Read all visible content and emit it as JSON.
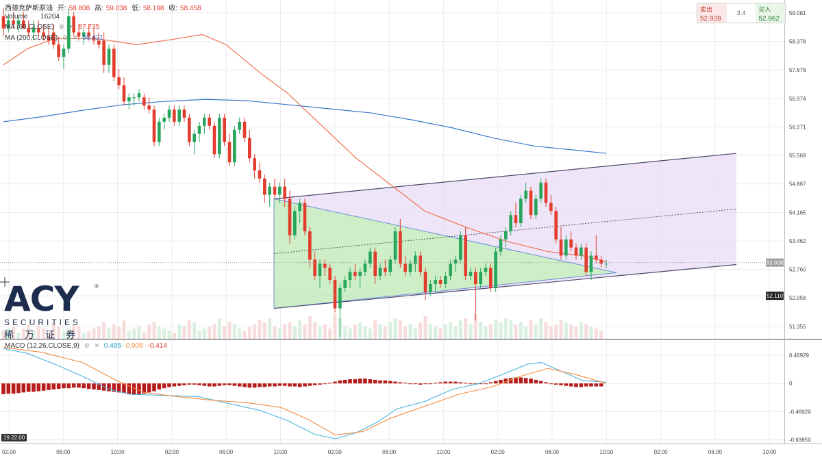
{
  "legend": {
    "symbol": "西德克萨斯原油",
    "open_label": "开:",
    "open": "58.808",
    "high_label": "高:",
    "high": "59.038",
    "low_label": "低:",
    "low": "58.198",
    "close_label": "收:",
    "close": "58.458",
    "volume_label": "Volume",
    "volume": "16204",
    "ma60_label": "MA (60,CLOSE)",
    "ma60_value": "57.735",
    "ma200_label": "MA (200,CLOSE)",
    "ma200_value": "56.421",
    "macd_label": "MACD (12,26,CLOSE,9)",
    "macd_value": "0.495",
    "signal_value": "0.908",
    "hist_value": "-0.414",
    "settings_icon": "gear-icon",
    "close_icon": "close-icon"
  },
  "trade_box": {
    "sell_label": "卖出",
    "sell_price": "52.928",
    "spread": "3.4",
    "buy_label": "买入",
    "buy_price": "52.962"
  },
  "logo": {
    "brand": "ACY",
    "securities": "SECURITIES",
    "chinese": "稀万证券",
    "reg": "®"
  },
  "time_tag": "19 22:00",
  "colors": {
    "up": "#26a65b",
    "down": "#e23c2c",
    "ma60": "#f07050",
    "ma200": "#3a78c9",
    "macd_line": "#4ab3e0",
    "signal_line": "#f28a3d",
    "macd_hist": "#b71c1c",
    "triangle_fill": "#c8f0c0",
    "channel_fill": "#eadcf7"
  },
  "chart_data": {
    "type": "candlestick",
    "price_axis": {
      "ticks": [
        "59.081",
        "58.378",
        "57.676",
        "56.974",
        "56.271",
        "55.569",
        "54.867",
        "54.165",
        "53.462",
        "52.760",
        "52.058",
        "51.355"
      ],
      "ylim": [
        51.05,
        59.4
      ],
      "current_price": "52.928",
      "marked_price": "52.110"
    },
    "macd_axis": {
      "ticks": [
        "0.46929",
        "0",
        "-0.46929",
        "-0.93859"
      ],
      "ylim": [
        -1.0,
        0.72
      ]
    },
    "time_axis": {
      "ticks": [
        "02:00",
        "06:00",
        "10:00",
        "02:00",
        "06:00",
        "10:00",
        "02:00",
        "06:00",
        "10:00",
        "02:00",
        "06:00",
        "10:00",
        "02:00",
        "06:00",
        "10:00"
      ]
    },
    "candles": [
      [
        59.0,
        59.2,
        58.5,
        58.7
      ],
      [
        58.7,
        59.0,
        58.6,
        58.9
      ],
      [
        58.9,
        59.1,
        58.7,
        58.8
      ],
      [
        58.8,
        59.0,
        58.6,
        58.9
      ],
      [
        58.9,
        59.1,
        58.7,
        58.7
      ],
      [
        58.7,
        58.9,
        58.5,
        58.6
      ],
      [
        58.6,
        58.9,
        58.4,
        58.7
      ],
      [
        58.7,
        58.9,
        58.5,
        58.6
      ],
      [
        58.6,
        58.8,
        58.4,
        58.5
      ],
      [
        58.5,
        58.7,
        58.3,
        58.4
      ],
      [
        58.6,
        58.8,
        58.2,
        58.3
      ],
      [
        58.3,
        58.5,
        57.9,
        58.0
      ],
      [
        58.0,
        58.3,
        57.7,
        58.2
      ],
      [
        58.2,
        59.2,
        58.1,
        59.0
      ],
      [
        59.0,
        59.1,
        58.5,
        58.6
      ],
      [
        58.6,
        58.8,
        58.4,
        58.5
      ],
      [
        58.5,
        58.7,
        58.3,
        58.6
      ],
      [
        58.6,
        58.8,
        58.4,
        58.5
      ],
      [
        58.5,
        58.7,
        58.3,
        58.4
      ],
      [
        58.4,
        58.6,
        58.2,
        58.3
      ],
      [
        58.4,
        58.6,
        57.6,
        57.8
      ],
      [
        57.8,
        58.3,
        57.6,
        58.2
      ],
      [
        58.2,
        58.3,
        57.4,
        57.5
      ],
      [
        57.5,
        57.7,
        57.2,
        57.3
      ],
      [
        57.3,
        57.5,
        56.8,
        56.9
      ],
      [
        56.9,
        57.1,
        56.7,
        57.0
      ],
      [
        57.0,
        57.1,
        56.8,
        57.0
      ],
      [
        57.0,
        57.2,
        56.9,
        57.1
      ],
      [
        57.0,
        57.1,
        56.7,
        56.8
      ],
      [
        56.8,
        57.0,
        56.6,
        56.7
      ],
      [
        56.7,
        56.8,
        55.8,
        55.9
      ],
      [
        55.9,
        56.5,
        55.8,
        56.4
      ],
      [
        56.4,
        56.6,
        56.2,
        56.5
      ],
      [
        56.5,
        56.8,
        56.4,
        56.7
      ],
      [
        56.7,
        56.8,
        56.3,
        56.4
      ],
      [
        56.4,
        56.8,
        56.3,
        56.7
      ],
      [
        56.7,
        56.8,
        56.4,
        56.5
      ],
      [
        56.5,
        56.6,
        55.8,
        55.9
      ],
      [
        55.9,
        56.2,
        55.6,
        56.1
      ],
      [
        56.1,
        56.4,
        55.9,
        56.3
      ],
      [
        56.3,
        56.6,
        56.1,
        56.5
      ],
      [
        56.5,
        56.6,
        56.2,
        56.3
      ],
      [
        56.3,
        56.4,
        55.5,
        55.6
      ],
      [
        55.6,
        56.6,
        55.5,
        56.5
      ],
      [
        56.5,
        56.6,
        55.8,
        55.9
      ],
      [
        55.9,
        56.1,
        55.3,
        55.4
      ],
      [
        55.4,
        56.3,
        55.3,
        56.2
      ],
      [
        56.2,
        56.5,
        56.1,
        56.4
      ],
      [
        56.4,
        56.5,
        55.9,
        56.0
      ],
      [
        56.0,
        56.2,
        55.4,
        55.5
      ],
      [
        55.5,
        55.6,
        55.0,
        55.2
      ],
      [
        55.2,
        55.4,
        54.9,
        55.0
      ],
      [
        55.0,
        55.1,
        54.4,
        54.6
      ],
      [
        54.6,
        54.9,
        54.3,
        54.8
      ],
      [
        54.8,
        55.0,
        54.5,
        54.6
      ],
      [
        54.6,
        54.9,
        54.4,
        54.8
      ],
      [
        54.8,
        55.0,
        54.3,
        54.5
      ],
      [
        54.5,
        54.7,
        53.4,
        53.6
      ],
      [
        53.6,
        54.3,
        53.5,
        54.2
      ],
      [
        54.2,
        54.5,
        53.9,
        54.4
      ],
      [
        54.4,
        54.5,
        53.6,
        53.7
      ],
      [
        53.7,
        53.8,
        52.8,
        53.0
      ],
      [
        53.0,
        53.2,
        52.5,
        52.6
      ],
      [
        52.6,
        53.0,
        52.3,
        52.9
      ],
      [
        52.9,
        53.0,
        52.6,
        52.8
      ],
      [
        52.8,
        52.9,
        52.4,
        52.5
      ],
      [
        52.5,
        52.6,
        51.7,
        51.8
      ],
      [
        51.8,
        52.4,
        51.1,
        52.3
      ],
      [
        52.3,
        52.6,
        52.2,
        52.5
      ],
      [
        52.5,
        52.8,
        52.3,
        52.7
      ],
      [
        52.7,
        52.9,
        52.5,
        52.6
      ],
      [
        52.6,
        52.8,
        52.3,
        52.7
      ],
      [
        52.7,
        53.0,
        52.6,
        52.9
      ],
      [
        52.9,
        53.3,
        52.8,
        53.2
      ],
      [
        53.2,
        53.3,
        52.4,
        52.6
      ],
      [
        52.6,
        52.9,
        52.5,
        52.8
      ],
      [
        52.8,
        53.0,
        52.6,
        52.7
      ],
      [
        52.7,
        53.1,
        52.6,
        53.0
      ],
      [
        53.0,
        53.8,
        52.9,
        53.7
      ],
      [
        53.7,
        54.0,
        52.8,
        52.9
      ],
      [
        52.9,
        53.1,
        52.6,
        52.7
      ],
      [
        52.7,
        53.0,
        52.6,
        52.9
      ],
      [
        52.9,
        53.2,
        52.7,
        53.1
      ],
      [
        53.1,
        53.2,
        52.6,
        52.7
      ],
      [
        52.7,
        52.8,
        52.0,
        52.2
      ],
      [
        52.2,
        52.5,
        52.1,
        52.4
      ],
      [
        52.4,
        52.6,
        52.2,
        52.5
      ],
      [
        52.5,
        52.6,
        52.3,
        52.4
      ],
      [
        52.4,
        52.7,
        52.3,
        52.6
      ],
      [
        52.6,
        53.0,
        52.5,
        52.9
      ],
      [
        52.9,
        53.1,
        52.7,
        53.0
      ],
      [
        53.0,
        53.7,
        52.9,
        53.6
      ],
      [
        53.6,
        53.8,
        52.5,
        52.6
      ],
      [
        52.6,
        52.8,
        52.5,
        52.7
      ],
      [
        52.7,
        52.8,
        51.5,
        52.4
      ],
      [
        52.4,
        52.8,
        52.3,
        52.7
      ],
      [
        52.7,
        52.9,
        52.6,
        52.8
      ],
      [
        52.8,
        52.9,
        52.2,
        52.3
      ],
      [
        52.3,
        53.3,
        52.2,
        53.2
      ],
      [
        53.2,
        53.6,
        53.1,
        53.5
      ],
      [
        53.5,
        53.8,
        53.3,
        53.7
      ],
      [
        53.7,
        54.2,
        53.6,
        54.1
      ],
      [
        54.1,
        54.4,
        53.8,
        53.9
      ],
      [
        53.9,
        54.6,
        53.8,
        54.5
      ],
      [
        54.5,
        54.9,
        54.4,
        54.7
      ],
      [
        54.7,
        54.8,
        54.0,
        54.1
      ],
      [
        54.1,
        54.6,
        54.0,
        54.5
      ],
      [
        54.5,
        55.0,
        54.4,
        54.9
      ],
      [
        54.9,
        55.0,
        54.3,
        54.4
      ],
      [
        54.4,
        54.6,
        54.1,
        54.2
      ],
      [
        54.2,
        54.3,
        53.4,
        53.5
      ],
      [
        53.5,
        53.8,
        53.0,
        53.1
      ],
      [
        53.1,
        53.6,
        53.0,
        53.5
      ],
      [
        53.5,
        53.7,
        53.2,
        53.3
      ],
      [
        53.3,
        53.4,
        53.0,
        53.1
      ],
      [
        53.1,
        53.4,
        53.0,
        53.3
      ],
      [
        53.3,
        53.4,
        52.6,
        52.7
      ],
      [
        52.7,
        53.2,
        52.5,
        53.1
      ],
      [
        53.1,
        53.6,
        52.9,
        53.0
      ],
      [
        53.0,
        53.1,
        52.8,
        52.9
      ],
      [
        52.9,
        53.0,
        52.8,
        52.9
      ]
    ],
    "ma60": [
      [
        5,
        57.8
      ],
      [
        40,
        58.2
      ],
      [
        80,
        58.45
      ],
      [
        140,
        58.45
      ],
      [
        200,
        58.3
      ],
      [
        260,
        58.45
      ],
      [
        295,
        58.55
      ],
      [
        330,
        58.3
      ],
      [
        380,
        57.6
      ],
      [
        420,
        57.1
      ],
      [
        470,
        56.3
      ],
      [
        520,
        55.5
      ],
      [
        570,
        54.85
      ],
      [
        620,
        54.2
      ],
      [
        680,
        53.8
      ],
      [
        740,
        53.45
      ],
      [
        800,
        53.2
      ],
      [
        850,
        53.1
      ],
      [
        885,
        52.95
      ]
    ],
    "ma200": [
      [
        5,
        56.4
      ],
      [
        60,
        56.52
      ],
      [
        120,
        56.68
      ],
      [
        180,
        56.82
      ],
      [
        240,
        56.9
      ],
      [
        300,
        56.95
      ],
      [
        360,
        56.92
      ],
      [
        420,
        56.82
      ],
      [
        480,
        56.72
      ],
      [
        540,
        56.62
      ],
      [
        600,
        56.45
      ],
      [
        660,
        56.25
      ],
      [
        720,
        56.0
      ],
      [
        780,
        55.8
      ],
      [
        840,
        55.7
      ],
      [
        885,
        55.62
      ]
    ],
    "triangle": [
      [
        400,
        54.5
      ],
      [
        400,
        51.8
      ],
      [
        900,
        52.68
      ]
    ],
    "channel": {
      "upper": [
        [
          400,
          54.5
        ],
        [
          1075,
          55.62
        ]
      ],
      "lower": [
        [
          400,
          51.8
        ],
        [
          1075,
          52.88
        ]
      ],
      "mid": [
        [
          400,
          53.15
        ],
        [
          1075,
          54.25
        ]
      ]
    },
    "volume": [
      4,
      5,
      6,
      3,
      5,
      7,
      4,
      6,
      5,
      3,
      8,
      6,
      4,
      5,
      7,
      6,
      3,
      4,
      5,
      6,
      8,
      5,
      7,
      6,
      9,
      4,
      5,
      6,
      3,
      7,
      8,
      6,
      5,
      4,
      3,
      7,
      6,
      9,
      8,
      4,
      5,
      6,
      7,
      10,
      6,
      8,
      7,
      5,
      4,
      6,
      7,
      9,
      8,
      10,
      6,
      5,
      7,
      8,
      6,
      9,
      7,
      11,
      8,
      6,
      7,
      5,
      12,
      10,
      6,
      5,
      7,
      8,
      6,
      5,
      9,
      7,
      6,
      8,
      10,
      9,
      6,
      7,
      5,
      8,
      11,
      7,
      6,
      5,
      7,
      8,
      6,
      9,
      10,
      7,
      12,
      8,
      6,
      7,
      9,
      8,
      10,
      9,
      7,
      8,
      6,
      9,
      7,
      10,
      8,
      6,
      7,
      9,
      8,
      7,
      6,
      8,
      7,
      6,
      5,
      4
    ],
    "macd_line": [
      [
        5,
        0.58
      ],
      [
        40,
        0.5
      ],
      [
        80,
        0.32
      ],
      [
        120,
        0.12
      ],
      [
        160,
        -0.1
      ],
      [
        190,
        -0.18
      ],
      [
        240,
        -0.2
      ],
      [
        290,
        -0.22
      ],
      [
        340,
        -0.35
      ],
      [
        380,
        -0.45
      ],
      [
        420,
        -0.62
      ],
      [
        460,
        -0.85
      ],
      [
        490,
        -0.92
      ],
      [
        520,
        -0.82
      ],
      [
        550,
        -0.65
      ],
      [
        580,
        -0.42
      ],
      [
        620,
        -0.3
      ],
      [
        660,
        -0.1
      ],
      [
        700,
        0.0
      ],
      [
        740,
        0.18
      ],
      [
        770,
        0.32
      ],
      [
        790,
        0.35
      ],
      [
        820,
        0.2
      ],
      [
        850,
        0.05
      ],
      [
        885,
        0.02
      ]
    ],
    "signal_line": [
      [
        5,
        0.6
      ],
      [
        60,
        0.52
      ],
      [
        120,
        0.35
      ],
      [
        170,
        0.05
      ],
      [
        210,
        -0.15
      ],
      [
        260,
        -0.22
      ],
      [
        310,
        -0.28
      ],
      [
        360,
        -0.32
      ],
      [
        410,
        -0.4
      ],
      [
        450,
        -0.6
      ],
      [
        490,
        -0.86
      ],
      [
        530,
        -0.8
      ],
      [
        570,
        -0.58
      ],
      [
        620,
        -0.38
      ],
      [
        670,
        -0.18
      ],
      [
        720,
        -0.05
      ],
      [
        760,
        0.12
      ],
      [
        800,
        0.25
      ],
      [
        840,
        0.15
      ],
      [
        885,
        0.0
      ]
    ],
    "macd_hist": [
      -0.18,
      -0.17,
      -0.17,
      -0.16,
      -0.15,
      -0.14,
      -0.14,
      -0.13,
      -0.12,
      -0.11,
      -0.1,
      -0.09,
      -0.08,
      -0.08,
      -0.07,
      -0.07,
      -0.08,
      -0.09,
      -0.1,
      -0.11,
      -0.12,
      -0.13,
      -0.14,
      -0.15,
      -0.16,
      -0.18,
      -0.19,
      -0.18,
      -0.17,
      -0.15,
      -0.13,
      -0.1,
      -0.08,
      -0.06,
      -0.05,
      -0.04,
      -0.03,
      -0.02,
      -0.02,
      -0.03,
      -0.04,
      -0.05,
      -0.05,
      -0.04,
      -0.03,
      -0.03,
      -0.04,
      -0.05,
      -0.06,
      -0.07,
      -0.07,
      -0.06,
      -0.06,
      -0.05,
      -0.05,
      -0.04,
      -0.04,
      -0.05,
      -0.05,
      -0.06,
      -0.05,
      -0.04,
      -0.03,
      -0.02,
      -0.01,
      0.01,
      0.03,
      0.05,
      0.06,
      0.07,
      0.07,
      0.08,
      0.08,
      0.07,
      0.06,
      0.05,
      0.05,
      0.04,
      0.03,
      0.02,
      0.01,
      0.0,
      -0.01,
      -0.02,
      -0.01,
      0.0,
      0.01,
      0.02,
      0.03,
      0.03,
      0.03,
      0.02,
      0.01,
      0.0,
      -0.01,
      -0.01,
      0.0,
      0.02,
      0.04,
      0.06,
      0.08,
      0.09,
      0.1,
      0.1,
      0.09,
      0.08,
      0.06,
      0.04,
      0.02,
      0.0,
      -0.02,
      -0.03,
      -0.04,
      -0.05,
      -0.06,
      -0.06,
      -0.05,
      -0.05,
      -0.05,
      -0.05
    ]
  }
}
